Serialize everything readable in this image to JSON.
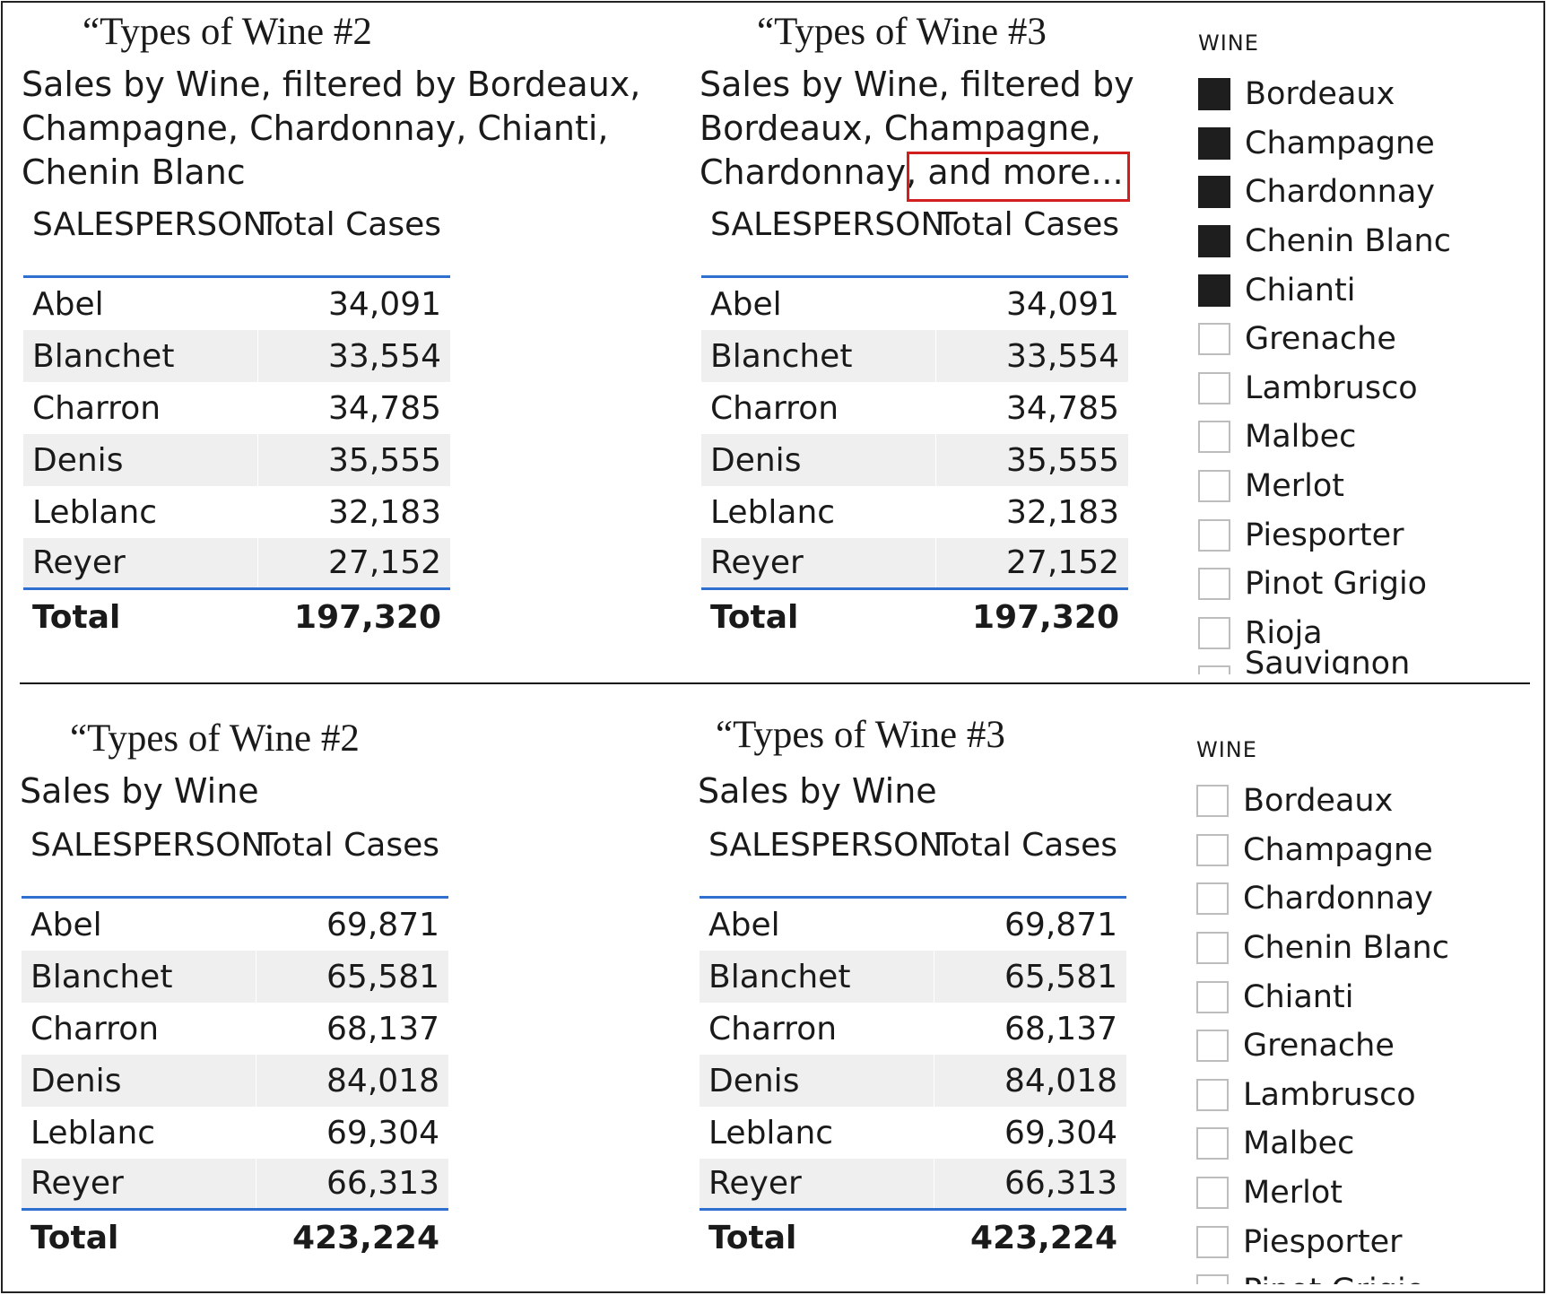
{
  "top": {
    "left": {
      "heading": "“Types of Wine #2",
      "subtitle_lines": [
        "Sales by Wine, filtered by Bordeaux,",
        "Champagne, Chardonnay, Chianti,",
        "Chenin Blanc"
      ],
      "columns": [
        "SALESPERSON",
        "Total Cases"
      ],
      "rows": [
        [
          "Abel",
          "34,091"
        ],
        [
          "Blanchet",
          "33,554"
        ],
        [
          "Charron",
          "34,785"
        ],
        [
          "Denis",
          "35,555"
        ],
        [
          "Leblanc",
          "32,183"
        ],
        [
          "Reyer",
          "27,152"
        ]
      ],
      "total": [
        "Total",
        "197,320"
      ]
    },
    "right": {
      "heading": "“Types of Wine #3",
      "subtitle_lines": [
        "Sales by Wine, filtered by",
        "Bordeaux, Champagne,",
        "Chardonnay, and more..."
      ],
      "columns": [
        "SALESPERSON",
        "Total Cases"
      ],
      "rows": [
        [
          "Abel",
          "34,091"
        ],
        [
          "Blanchet",
          "33,554"
        ],
        [
          "Charron",
          "34,785"
        ],
        [
          "Denis",
          "35,555"
        ],
        [
          "Leblanc",
          "32,183"
        ],
        [
          "Reyer",
          "27,152"
        ]
      ],
      "total": [
        "Total",
        "197,320"
      ]
    },
    "slicer": {
      "title": "WINE",
      "items": [
        {
          "label": "Bordeaux",
          "checked": true
        },
        {
          "label": "Champagne",
          "checked": true
        },
        {
          "label": "Chardonnay",
          "checked": true
        },
        {
          "label": "Chenin Blanc",
          "checked": true
        },
        {
          "label": "Chianti",
          "checked": true
        },
        {
          "label": "Grenache",
          "checked": false
        },
        {
          "label": "Lambrusco",
          "checked": false
        },
        {
          "label": "Malbec",
          "checked": false
        },
        {
          "label": "Merlot",
          "checked": false
        },
        {
          "label": "Piesporter",
          "checked": false
        },
        {
          "label": "Pinot Grigio",
          "checked": false
        },
        {
          "label": "Rioja",
          "checked": false
        },
        {
          "label": "Sauvignon Blanc",
          "checked": false
        }
      ]
    }
  },
  "bottom": {
    "left": {
      "heading": "“Types of Wine #2",
      "subtitle_lines": [
        "Sales by Wine"
      ],
      "columns": [
        "SALESPERSON",
        "Total Cases"
      ],
      "rows": [
        [
          "Abel",
          "69,871"
        ],
        [
          "Blanchet",
          "65,581"
        ],
        [
          "Charron",
          "68,137"
        ],
        [
          "Denis",
          "84,018"
        ],
        [
          "Leblanc",
          "69,304"
        ],
        [
          "Reyer",
          "66,313"
        ]
      ],
      "total": [
        "Total",
        "423,224"
      ]
    },
    "right": {
      "heading": "“Types of Wine #3",
      "subtitle_lines": [
        "Sales by Wine"
      ],
      "columns": [
        "SALESPERSON",
        "Total Cases"
      ],
      "rows": [
        [
          "Abel",
          "69,871"
        ],
        [
          "Blanchet",
          "65,581"
        ],
        [
          "Charron",
          "68,137"
        ],
        [
          "Denis",
          "84,018"
        ],
        [
          "Leblanc",
          "69,304"
        ],
        [
          "Reyer",
          "66,313"
        ]
      ],
      "total": [
        "Total",
        "423,224"
      ]
    },
    "slicer": {
      "title": "WINE",
      "items": [
        {
          "label": "Bordeaux",
          "checked": false
        },
        {
          "label": "Champagne",
          "checked": false
        },
        {
          "label": "Chardonnay",
          "checked": false
        },
        {
          "label": "Chenin Blanc",
          "checked": false
        },
        {
          "label": "Chianti",
          "checked": false
        },
        {
          "label": "Grenache",
          "checked": false
        },
        {
          "label": "Lambrusco",
          "checked": false
        },
        {
          "label": "Malbec",
          "checked": false
        },
        {
          "label": "Merlot",
          "checked": false
        },
        {
          "label": "Piesporter",
          "checked": false
        },
        {
          "label": "Pinot Grigio",
          "checked": false
        }
      ]
    }
  },
  "colors": {
    "accent_line": "#2f6fd0",
    "highlight_box": "#d11f1f",
    "checked_box": "#1e1e1e",
    "row_alt": "#efefef"
  }
}
